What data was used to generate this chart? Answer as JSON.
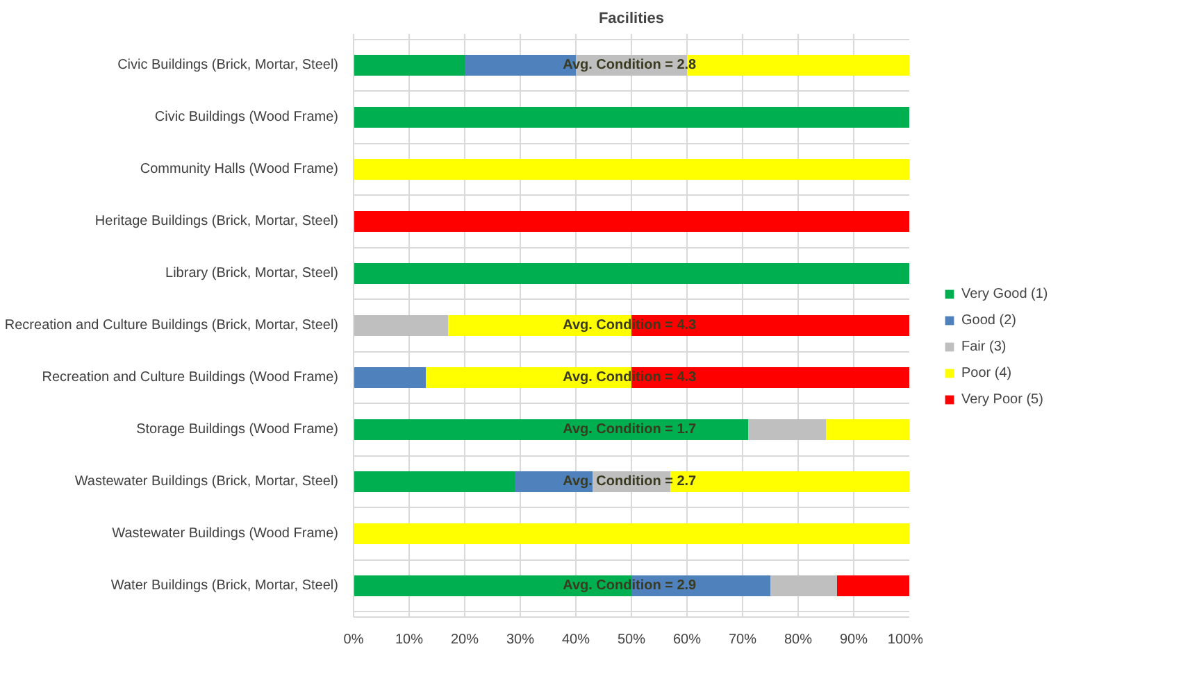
{
  "chart_data": {
    "type": "bar",
    "orientation": "horizontal",
    "stacked": true,
    "title": "Facilities",
    "categories": [
      "Civic Buildings (Brick, Mortar, Steel)",
      "Civic Buildings (Wood Frame)",
      "Community Halls (Wood Frame)",
      "Heritage Buildings (Brick, Mortar, Steel)",
      "Library (Brick, Mortar, Steel)",
      "Recreation and Culture Buildings (Brick, Mortar, Steel)",
      "Recreation and Culture Buildings (Wood Frame)",
      "Storage Buildings (Wood Frame)",
      "Wastewater Buildings (Brick, Mortar, Steel)",
      "Wastewater Buildings (Wood Frame)",
      "Water Buildings (Brick, Mortar, Steel)"
    ],
    "series": [
      {
        "name": "Very Good (1)",
        "color": "#00b050",
        "values": [
          20,
          100,
          0,
          0,
          100,
          0,
          0,
          71,
          29,
          0,
          50
        ]
      },
      {
        "name": "Good (2)",
        "color": "#4f81bd",
        "values": [
          20,
          0,
          0,
          0,
          0,
          0,
          13,
          0,
          14,
          0,
          25
        ]
      },
      {
        "name": "Fair (3)",
        "color": "#bfbfbf",
        "values": [
          20,
          0,
          0,
          0,
          0,
          17,
          0,
          14,
          14,
          0,
          12
        ]
      },
      {
        "name": "Poor (4)",
        "color": "#ffff00",
        "values": [
          40,
          0,
          100,
          0,
          0,
          33,
          37,
          15,
          43,
          100,
          0
        ]
      },
      {
        "name": "Very Poor (5)",
        "color": "#ff0000",
        "values": [
          0,
          0,
          0,
          100,
          0,
          50,
          50,
          0,
          0,
          0,
          13
        ]
      }
    ],
    "xlim": [
      0,
      100
    ],
    "xticks": [
      {
        "value": 0,
        "label": "0%"
      },
      {
        "value": 10,
        "label": "10%"
      },
      {
        "value": 20,
        "label": "20%"
      },
      {
        "value": 30,
        "label": "30%"
      },
      {
        "value": 40,
        "label": "40%"
      },
      {
        "value": 50,
        "label": "50%"
      },
      {
        "value": 60,
        "label": "60%"
      },
      {
        "value": 70,
        "label": "70%"
      },
      {
        "value": 80,
        "label": "80%"
      },
      {
        "value": 90,
        "label": "90%"
      },
      {
        "value": 100,
        "label": "100%"
      }
    ],
    "annotations": [
      "Avg. Condition =  2.8",
      "Avg. Condition =  4.3",
      "Avg. Condition =  4.3",
      "Avg. Condition =  1.7",
      "Avg. Condition =  2.7",
      "Avg. Condition =  2.9"
    ],
    "grid": true,
    "legend": "right"
  }
}
